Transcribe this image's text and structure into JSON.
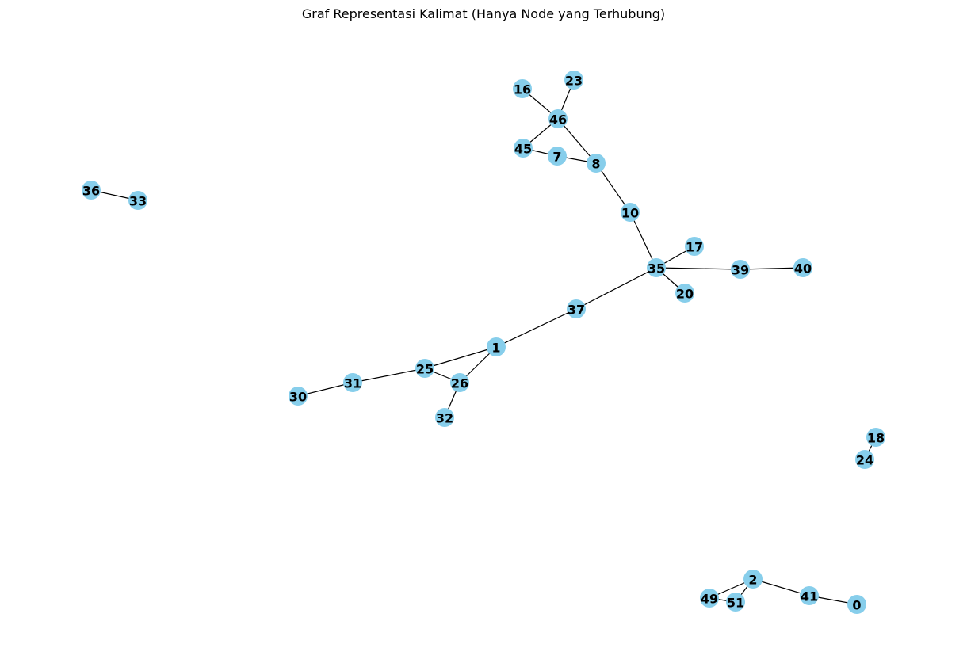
{
  "title": "Graf Representasi Kalimat (Hanya Node yang Terhubung)",
  "node_color": "#87ceeb",
  "edge_color": "#000000",
  "nodes": [
    {
      "id": "16"
    },
    {
      "id": "23"
    },
    {
      "id": "46"
    },
    {
      "id": "45"
    },
    {
      "id": "7"
    },
    {
      "id": "8"
    },
    {
      "id": "10"
    },
    {
      "id": "36"
    },
    {
      "id": "33"
    },
    {
      "id": "17"
    },
    {
      "id": "35"
    },
    {
      "id": "39"
    },
    {
      "id": "40"
    },
    {
      "id": "20"
    },
    {
      "id": "37"
    },
    {
      "id": "1"
    },
    {
      "id": "25"
    },
    {
      "id": "26"
    },
    {
      "id": "31"
    },
    {
      "id": "30"
    },
    {
      "id": "32"
    },
    {
      "id": "18"
    },
    {
      "id": "24"
    },
    {
      "id": "2"
    },
    {
      "id": "41"
    },
    {
      "id": "49"
    },
    {
      "id": "51"
    },
    {
      "id": "0"
    }
  ],
  "edges": [
    [
      "16",
      "46"
    ],
    [
      "23",
      "46"
    ],
    [
      "46",
      "45"
    ],
    [
      "46",
      "8"
    ],
    [
      "45",
      "7"
    ],
    [
      "7",
      "8"
    ],
    [
      "8",
      "10"
    ],
    [
      "10",
      "35"
    ],
    [
      "35",
      "17"
    ],
    [
      "35",
      "39"
    ],
    [
      "39",
      "40"
    ],
    [
      "35",
      "20"
    ],
    [
      "35",
      "37"
    ],
    [
      "37",
      "1"
    ],
    [
      "1",
      "25"
    ],
    [
      "1",
      "26"
    ],
    [
      "25",
      "26"
    ],
    [
      "25",
      "31"
    ],
    [
      "31",
      "30"
    ],
    [
      "26",
      "32"
    ],
    [
      "36",
      "33"
    ],
    [
      "18",
      "24"
    ],
    [
      "2",
      "49"
    ],
    [
      "2",
      "51"
    ],
    [
      "49",
      "51"
    ],
    [
      "2",
      "41"
    ],
    [
      "41",
      "0"
    ]
  ]
}
